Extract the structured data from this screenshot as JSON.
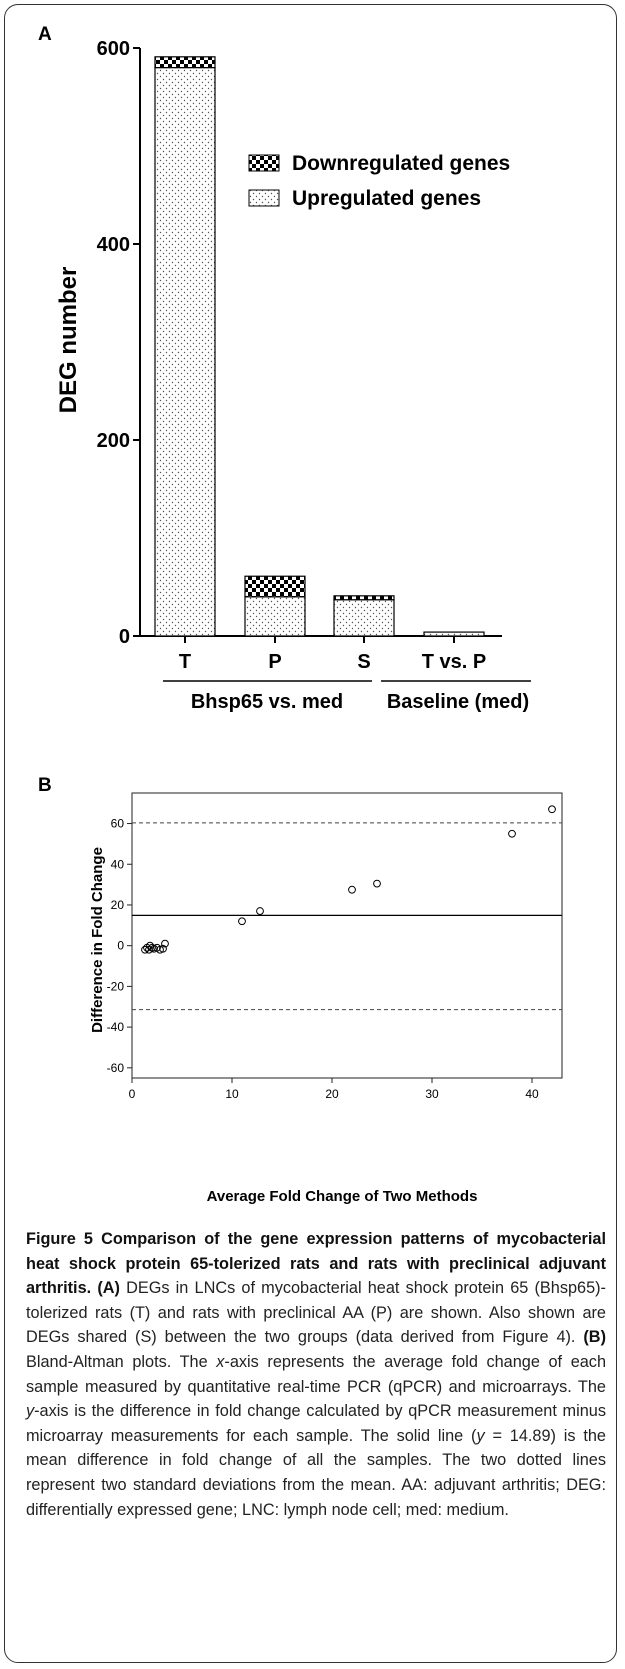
{
  "panel_a": {
    "label": "A",
    "legend": [
      "Downregulated genes",
      "Upregulated genes"
    ],
    "group_labels": [
      "Bhsp65 vs. med",
      "Baseline (med)"
    ]
  },
  "panel_b": {
    "label": "B"
  },
  "chart_data": [
    {
      "type": "bar",
      "stacked": true,
      "ylabel": "DEG number",
      "ylim": [
        0,
        600
      ],
      "yticks": [
        0,
        200,
        400,
        600
      ],
      "categories": [
        "T",
        "P",
        "S",
        "T vs. P"
      ],
      "series": [
        {
          "name": "Upregulated genes",
          "values": [
            580,
            40,
            37,
            4
          ],
          "pattern": "dotted"
        },
        {
          "name": "Downregulated genes",
          "values": [
            11,
            21,
            4,
            0
          ],
          "pattern": "checkerboard"
        }
      ],
      "legend_position": "top-right"
    },
    {
      "type": "scatter",
      "xlabel": "Average Fold Change of Two Methods",
      "ylabel": "Difference in Fold Change",
      "xlim": [
        0,
        43
      ],
      "ylim": [
        -65,
        75
      ],
      "xticks": [
        0,
        10,
        20,
        30,
        40
      ],
      "yticks": [
        -60,
        -40,
        -20,
        0,
        20,
        40,
        60
      ],
      "points": [
        {
          "x": 1.3,
          "y": -2
        },
        {
          "x": 1.5,
          "y": -1
        },
        {
          "x": 1.7,
          "y": -2
        },
        {
          "x": 1.8,
          "y": 0
        },
        {
          "x": 2.0,
          "y": -1
        },
        {
          "x": 2.2,
          "y": -1.5
        },
        {
          "x": 2.5,
          "y": -1
        },
        {
          "x": 2.8,
          "y": -2
        },
        {
          "x": 3.1,
          "y": -1.5
        },
        {
          "x": 3.3,
          "y": 1
        },
        {
          "x": 11.0,
          "y": 12
        },
        {
          "x": 12.8,
          "y": 17
        },
        {
          "x": 22.0,
          "y": 27.5
        },
        {
          "x": 24.5,
          "y": 30.5
        },
        {
          "x": 38.0,
          "y": 55
        },
        {
          "x": 42.0,
          "y": 67
        }
      ],
      "mean_line": 14.89,
      "sd_lines": [
        60.3,
        -31.4
      ]
    }
  ],
  "caption": {
    "title": "Figure 5 Comparison of the gene expression patterns of mycobacterial heat shock protein 65-tolerized rats and rats with preclinical adjuvant arthritis",
    "part_a_tag": "(A)",
    "part_a_text": "DEGs in LNCs of mycobacterial heat shock protein 65 (Bhsp65)-tolerized rats (T) and rats with preclinical AA (P) are shown. Also shown are DEGs shared (S) between the two groups (data derived from Figure 4).",
    "part_b_tag": "(B)",
    "part_b_text_1": "Bland-Altman plots. The",
    "x_axis_word": "x",
    "part_b_text_2": "-axis represents the average fold change of each sample measured by quantitative real-time PCR (qPCR) and microarrays. The",
    "y_axis_word": "y",
    "part_b_text_3": "-axis is the difference in fold change calculated by qPCR measurement minus microarray measurements for each sample. The solid line (",
    "y_eq_word": "y",
    "part_b_text_4": "= 14.89) is the mean difference in fold change of all the samples. The two dotted lines represent two standard deviations from the mean. AA: adjuvant arthritis; DEG: differentially expressed gene; LNC: lymph node cell; med: medium."
  }
}
